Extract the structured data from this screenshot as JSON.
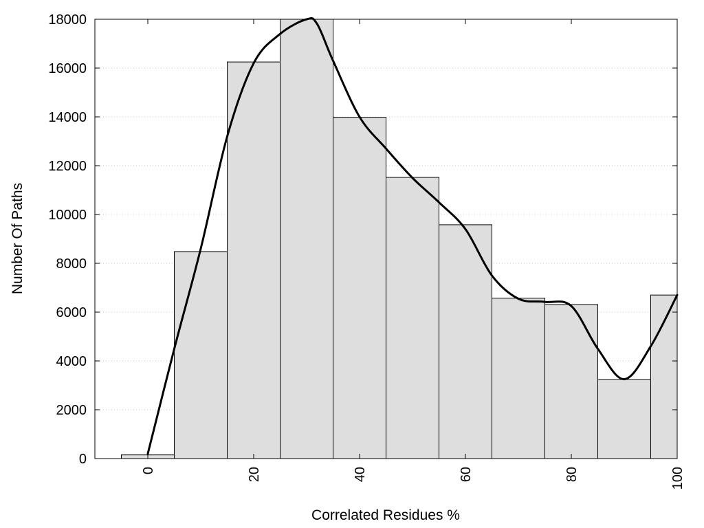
{
  "chart_data": {
    "type": "bar",
    "xlabel": "Correlated Residues %",
    "ylabel": "Number Of Paths",
    "xlim": [
      -10,
      100
    ],
    "ylim": [
      0,
      18000
    ],
    "x_ticks": [
      0,
      20,
      40,
      60,
      80,
      100
    ],
    "y_ticks": [
      0,
      2000,
      4000,
      6000,
      8000,
      10000,
      12000,
      14000,
      16000,
      18000
    ],
    "grid": "horizontal-dotted",
    "bin_width": 10,
    "bins": [
      {
        "center": 0,
        "value": 150
      },
      {
        "center": 10,
        "value": 8480
      },
      {
        "center": 20,
        "value": 16250
      },
      {
        "center": 30,
        "value": 18000
      },
      {
        "center": 40,
        "value": 13980
      },
      {
        "center": 50,
        "value": 11520
      },
      {
        "center": 60,
        "value": 9580
      },
      {
        "center": 70,
        "value": 6570
      },
      {
        "center": 80,
        "value": 6310
      },
      {
        "center": 90,
        "value": 3240
      },
      {
        "center": 100,
        "value": 6700
      }
    ],
    "curve": {
      "type": "smooth-line",
      "color": "#000000",
      "points": [
        [
          0,
          200
        ],
        [
          5,
          4500
        ],
        [
          10,
          8600
        ],
        [
          15,
          13200
        ],
        [
          20,
          16200
        ],
        [
          25,
          17400
        ],
        [
          30,
          18000
        ],
        [
          32,
          17800
        ],
        [
          35,
          16300
        ],
        [
          40,
          14000
        ],
        [
          45,
          12700
        ],
        [
          50,
          11500
        ],
        [
          55,
          10500
        ],
        [
          60,
          9400
        ],
        [
          65,
          7500
        ],
        [
          70,
          6550
        ],
        [
          75,
          6420
        ],
        [
          80,
          6250
        ],
        [
          85,
          4500
        ],
        [
          90,
          3250
        ],
        [
          95,
          4600
        ],
        [
          100,
          6700
        ]
      ]
    }
  }
}
